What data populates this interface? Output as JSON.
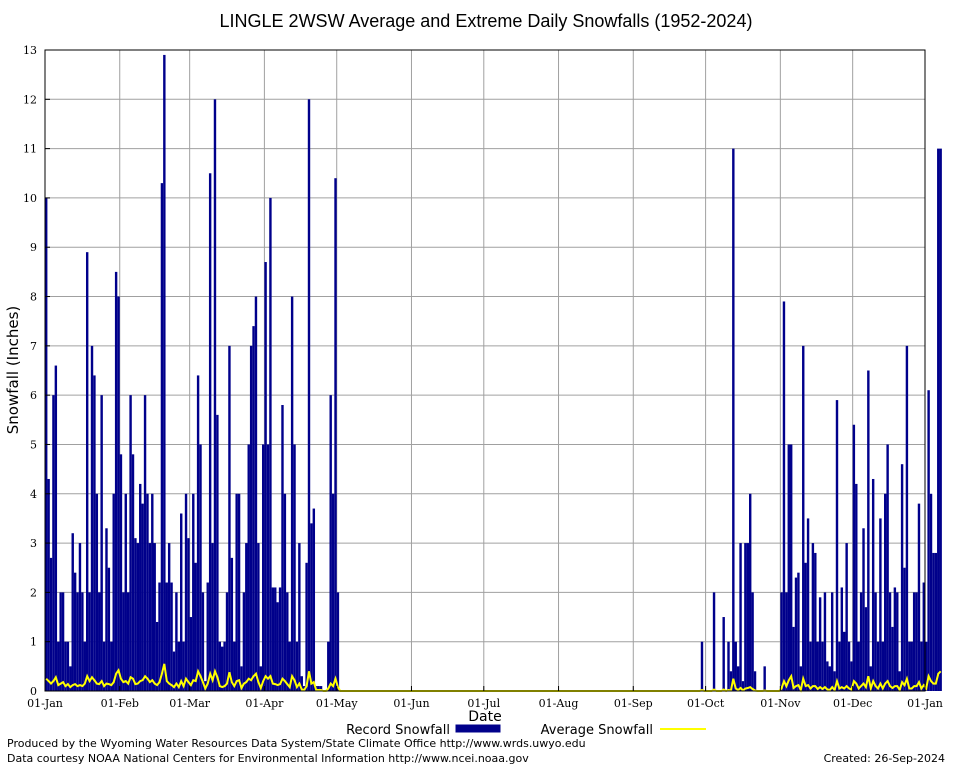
{
  "chart_data": {
    "type": "bar",
    "title": "LINGLE 2WSW Average and Extreme Daily Snowfalls (1952-2024)",
    "xlabel": "Date",
    "ylabel": "Snowfall (Inches)",
    "ylim": [
      0,
      13
    ],
    "xlim_day_of_year": [
      1,
      366
    ],
    "yticks": [
      "0",
      "1",
      "2",
      "3",
      "4",
      "5",
      "6",
      "7",
      "8",
      "9",
      "10",
      "11",
      "12",
      "13"
    ],
    "xticks": [
      {
        "label": "01-Jan",
        "day": 1
      },
      {
        "label": "01-Feb",
        "day": 32
      },
      {
        "label": "01-Mar",
        "day": 61
      },
      {
        "label": "01-Apr",
        "day": 92
      },
      {
        "label": "01-May",
        "day": 122
      },
      {
        "label": "01-Jun",
        "day": 153
      },
      {
        "label": "01-Jul",
        "day": 183
      },
      {
        "label": "01-Aug",
        "day": 214
      },
      {
        "label": "01-Sep",
        "day": 245
      },
      {
        "label": "01-Oct",
        "day": 275
      },
      {
        "label": "01-Nov",
        "day": 306
      },
      {
        "label": "01-Dec",
        "day": 336
      },
      {
        "label": "01-Jan",
        "day": 366
      }
    ],
    "grid": true,
    "legend_position": "bottom",
    "series": [
      {
        "name": "Record Snowfall",
        "kind": "bar",
        "color": "#00008b",
        "values": [
          10.0,
          4.3,
          2.7,
          6.0,
          6.6,
          1.0,
          2.0,
          2.0,
          1.0,
          1.0,
          0.5,
          3.2,
          2.4,
          2.0,
          3.0,
          2.0,
          1.0,
          8.9,
          2.0,
          7.0,
          6.4,
          4.0,
          2.0,
          6.0,
          1.0,
          3.3,
          2.5,
          1.0,
          4.0,
          8.5,
          8.0,
          4.8,
          2.0,
          4.0,
          2.0,
          6.0,
          4.8,
          3.1,
          3.0,
          4.2,
          3.8,
          6.0,
          4.0,
          3.0,
          4.0,
          3.0,
          1.4,
          2.2,
          10.3,
          12.9,
          2.2,
          3.0,
          2.2,
          0.8,
          2.0,
          1.0,
          3.6,
          1.0,
          4.0,
          3.1,
          1.5,
          4.0,
          2.6,
          6.4,
          5.0,
          2.0,
          0.2,
          2.2,
          10.5,
          3.0,
          12.0,
          5.6,
          1.0,
          0.9,
          1.0,
          2.0,
          7.0,
          2.7,
          1.0,
          4.0,
          4.0,
          0.5,
          2.0,
          3.0,
          5.0,
          7.0,
          7.4,
          8.0,
          3.0,
          0.5,
          5.0,
          8.7,
          5.0,
          10.0,
          2.1,
          2.1,
          1.8,
          2.1,
          5.8,
          4.0,
          2.0,
          1.0,
          8.0,
          5.0,
          1.0,
          3.0,
          0.3,
          0.1,
          2.6,
          12.0,
          3.4,
          3.7,
          0.1,
          0.1,
          0.1,
          0.0,
          0.0,
          1.0,
          6.0,
          4.0,
          10.4,
          2.0,
          0,
          0,
          0,
          0,
          0,
          0,
          0,
          0,
          0,
          0,
          0,
          0,
          0,
          0,
          0,
          0,
          0,
          0,
          0,
          0,
          0,
          0,
          0,
          0,
          0,
          0,
          0,
          0,
          0,
          0,
          0,
          0,
          0,
          0,
          0,
          0,
          0,
          0,
          0,
          0,
          0,
          0,
          0,
          0,
          0,
          0,
          0,
          0,
          0,
          0,
          0,
          0,
          0,
          0,
          0,
          0,
          0,
          0,
          0,
          0,
          0,
          0,
          0,
          0,
          0,
          0,
          0,
          0,
          0,
          0,
          0,
          0,
          0,
          0,
          0,
          0,
          0,
          0,
          0,
          0,
          0,
          0,
          0,
          0,
          0,
          0,
          0,
          0,
          0,
          0,
          0,
          0,
          0,
          0,
          0,
          0,
          0,
          0,
          0,
          0,
          0,
          0,
          0,
          0,
          0,
          0,
          0,
          0,
          0,
          0,
          0,
          0,
          0,
          0,
          0,
          0,
          0,
          0,
          0,
          0,
          0,
          0,
          0,
          0,
          0,
          0,
          0,
          0,
          0,
          0,
          0,
          0,
          0,
          0,
          0,
          0,
          0,
          0,
          0,
          0,
          0,
          0,
          0,
          0,
          0,
          0,
          0,
          0,
          0,
          0,
          1.0,
          0,
          0,
          0,
          0,
          2.0,
          0,
          0,
          0,
          1.5,
          0,
          1.0,
          0.4,
          11.0,
          1.0,
          0.5,
          3.0,
          0.2,
          3.0,
          3.0,
          4.0,
          2.0,
          0.4,
          0,
          0,
          0,
          0.5,
          0,
          0,
          0,
          0,
          0,
          0,
          2.0,
          7.9,
          2.0,
          5.0,
          5.0,
          1.3,
          2.3,
          2.4,
          0.5,
          7.0,
          2.6,
          3.5,
          1.0,
          3.0,
          2.8,
          1.0,
          1.9,
          1.0,
          2.0,
          0.6,
          0.5,
          2.0,
          0.4,
          5.9,
          1.0,
          2.1,
          1.2,
          3.0,
          1.0,
          0.6,
          5.4,
          4.2,
          1.0,
          2.0,
          3.3,
          1.7,
          6.5,
          0.5,
          4.3,
          2.0,
          1.0,
          3.5,
          1.0,
          4.0,
          5.0,
          2.0,
          1.3,
          2.1,
          2.0,
          0.4,
          4.6,
          2.5,
          7.0,
          1.0,
          1.0,
          2.0,
          2.0,
          3.8,
          1.0,
          2.2,
          1.0,
          6.1,
          4.0,
          2.8,
          2.8,
          11.0,
          11.0
        ]
      },
      {
        "name": "Average Snowfall",
        "kind": "line",
        "color": "#ffff00",
        "values": [
          0.25,
          0.2,
          0.15,
          0.2,
          0.28,
          0.12,
          0.15,
          0.18,
          0.1,
          0.14,
          0.08,
          0.12,
          0.14,
          0.1,
          0.12,
          0.1,
          0.15,
          0.3,
          0.2,
          0.28,
          0.22,
          0.15,
          0.14,
          0.2,
          0.1,
          0.15,
          0.14,
          0.12,
          0.18,
          0.35,
          0.42,
          0.25,
          0.18,
          0.2,
          0.15,
          0.28,
          0.25,
          0.14,
          0.15,
          0.2,
          0.22,
          0.3,
          0.25,
          0.18,
          0.22,
          0.15,
          0.12,
          0.18,
          0.35,
          0.55,
          0.2,
          0.15,
          0.12,
          0.08,
          0.15,
          0.08,
          0.2,
          0.1,
          0.25,
          0.18,
          0.12,
          0.22,
          0.2,
          0.4,
          0.3,
          0.18,
          0.05,
          0.15,
          0.35,
          0.22,
          0.4,
          0.28,
          0.1,
          0.08,
          0.1,
          0.15,
          0.38,
          0.18,
          0.1,
          0.2,
          0.22,
          0.06,
          0.15,
          0.18,
          0.25,
          0.22,
          0.3,
          0.35,
          0.18,
          0.06,
          0.2,
          0.3,
          0.25,
          0.3,
          0.15,
          0.14,
          0.12,
          0.14,
          0.25,
          0.2,
          0.14,
          0.08,
          0.3,
          0.22,
          0.08,
          0.15,
          0.03,
          0.02,
          0.1,
          0.4,
          0.15,
          0.18,
          0.02,
          0.02,
          0.02,
          0.0,
          0.0,
          0.05,
          0.15,
          0.1,
          0.25,
          0.08,
          0,
          0,
          0,
          0,
          0,
          0,
          0,
          0,
          0,
          0,
          0,
          0,
          0,
          0,
          0,
          0,
          0,
          0,
          0,
          0,
          0,
          0,
          0,
          0,
          0,
          0,
          0,
          0,
          0,
          0,
          0,
          0,
          0,
          0,
          0,
          0,
          0,
          0,
          0,
          0,
          0,
          0,
          0,
          0,
          0,
          0,
          0,
          0,
          0,
          0,
          0,
          0,
          0,
          0,
          0,
          0,
          0,
          0,
          0,
          0,
          0,
          0,
          0,
          0,
          0,
          0,
          0,
          0,
          0,
          0,
          0,
          0,
          0,
          0,
          0,
          0,
          0,
          0,
          0,
          0,
          0,
          0,
          0,
          0,
          0,
          0,
          0,
          0,
          0,
          0,
          0,
          0,
          0,
          0,
          0,
          0,
          0,
          0,
          0,
          0,
          0,
          0,
          0,
          0,
          0,
          0,
          0,
          0,
          0,
          0,
          0,
          0,
          0,
          0,
          0,
          0,
          0,
          0,
          0,
          0,
          0,
          0,
          0,
          0,
          0,
          0,
          0,
          0,
          0,
          0,
          0,
          0,
          0,
          0,
          0,
          0,
          0,
          0,
          0,
          0,
          0,
          0,
          0,
          0,
          0,
          0,
          0,
          0,
          0,
          0,
          0.02,
          0,
          0,
          0,
          0,
          0.03,
          0,
          0,
          0,
          0.03,
          0,
          0.02,
          0.01,
          0.25,
          0.05,
          0.02,
          0.06,
          0.01,
          0.05,
          0.06,
          0.08,
          0.04,
          0.01,
          0,
          0,
          0,
          0.01,
          0,
          0,
          0,
          0,
          0,
          0,
          0.05,
          0.2,
          0.1,
          0.22,
          0.3,
          0.06,
          0.1,
          0.12,
          0.02,
          0.25,
          0.1,
          0.12,
          0.05,
          0.1,
          0.1,
          0.04,
          0.08,
          0.04,
          0.08,
          0.03,
          0.02,
          0.08,
          0.02,
          0.2,
          0.05,
          0.08,
          0.05,
          0.1,
          0.05,
          0.03,
          0.2,
          0.15,
          0.05,
          0.1,
          0.15,
          0.08,
          0.3,
          0.05,
          0.2,
          0.1,
          0.05,
          0.15,
          0.05,
          0.15,
          0.2,
          0.1,
          0.06,
          0.1,
          0.1,
          0.02,
          0.18,
          0.12,
          0.25,
          0.05,
          0.05,
          0.1,
          0.1,
          0.18,
          0.05,
          0.12,
          0.05,
          0.3,
          0.2,
          0.15,
          0.15,
          0.35,
          0.4
        ]
      }
    ]
  },
  "footer": {
    "credit_line_1": "Produced by the Wyoming Water Resources Data System/State Climate Office http://www.wrds.uwyo.edu",
    "credit_line_2": "Data courtesy NOAA National Centers for Environmental Information http://www.ncei.noaa.gov",
    "created": "Created:  26-Sep-2024"
  }
}
